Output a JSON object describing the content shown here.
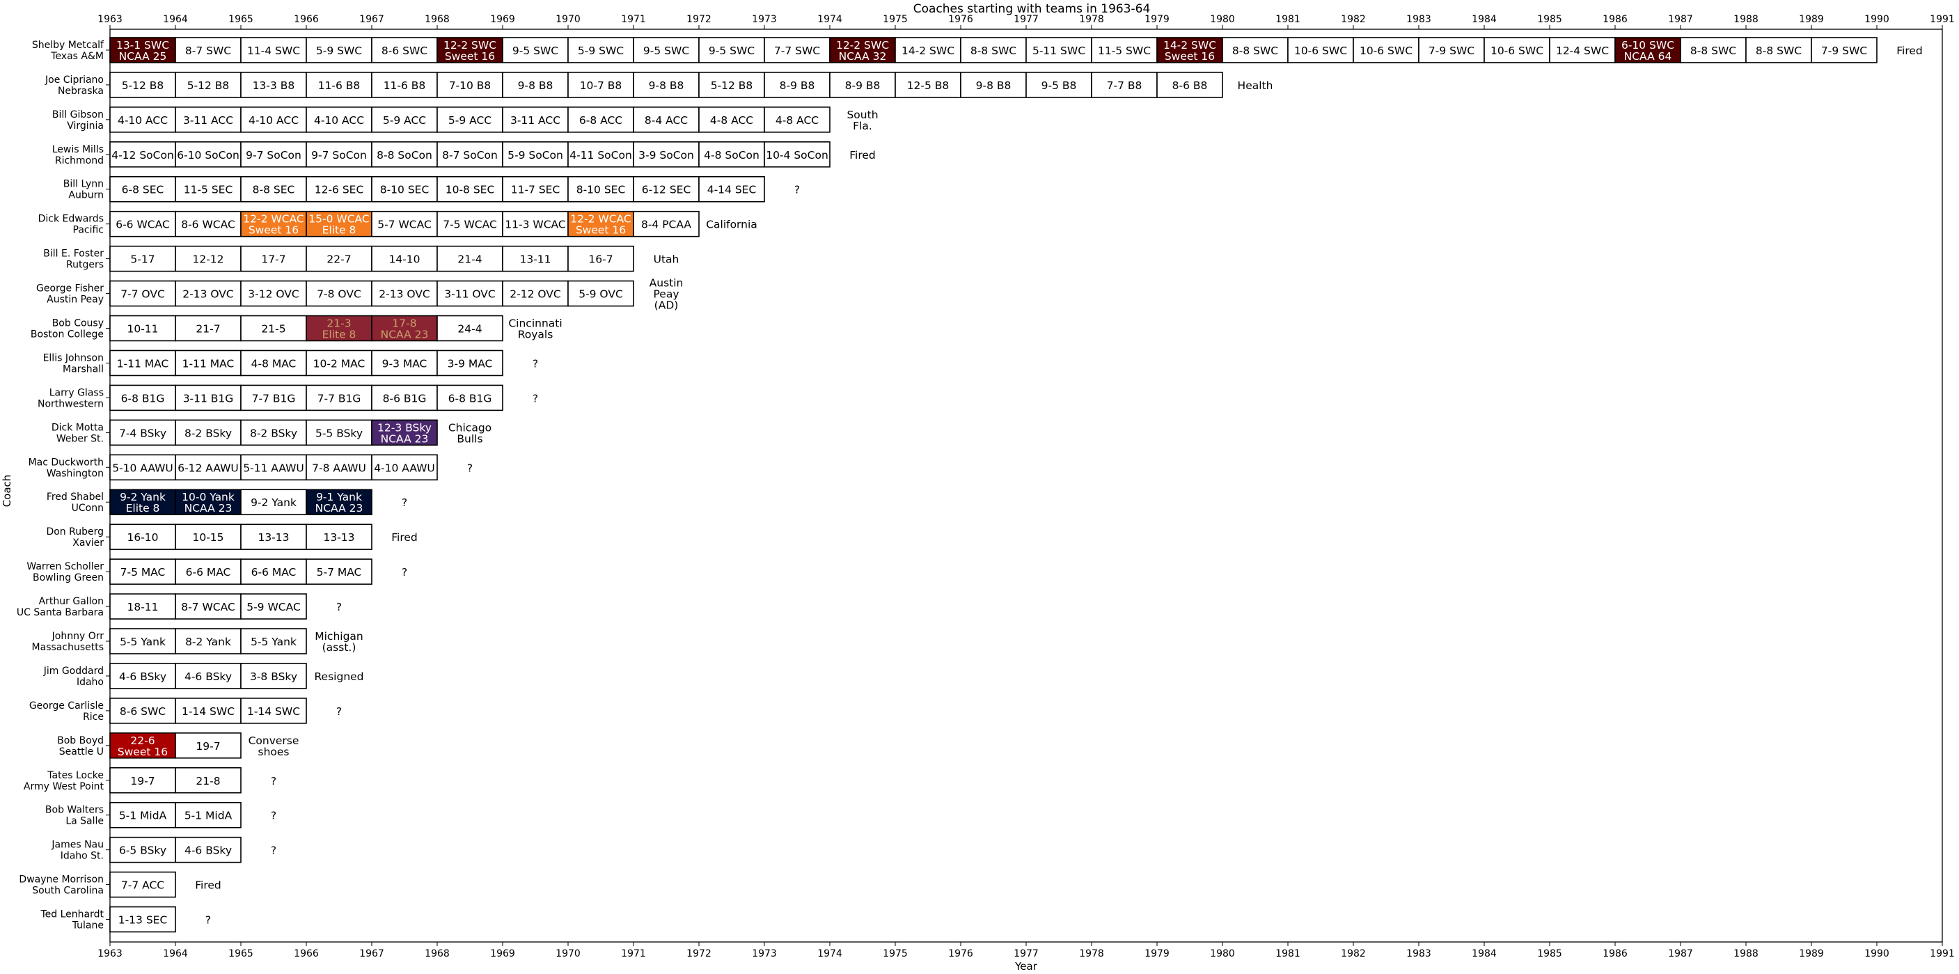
{
  "chart_data": {
    "type": "timeline",
    "title": "Coaches starting with teams in 1963-64",
    "xlabel": "Year",
    "ylabel": "Coach",
    "xlim": [
      1963,
      1991
    ],
    "x_ticks": [
      1963,
      1964,
      1965,
      1966,
      1967,
      1968,
      1969,
      1970,
      1971,
      1972,
      1973,
      1974,
      1975,
      1976,
      1977,
      1978,
      1979,
      1980,
      1981,
      1982,
      1983,
      1984,
      1985,
      1986,
      1987,
      1988,
      1989,
      1990,
      1991
    ],
    "colors": {
      "default_fill": "#ffffff",
      "edge": "#000000",
      "texas_am": "#500000",
      "dick_edwards": "#f47b20",
      "bob_cousy": "#8a2432",
      "dick_motta": "#4b286d",
      "fred_shabel": "#000e2f",
      "bob_boyd": "#aa0000"
    },
    "coaches": [
      {
        "name": "Shelby Metcalf",
        "team": "Texas A&M",
        "start": 1963,
        "color": "#500000",
        "label_color": "#ffffff",
        "outcome": "Fired",
        "seasons": [
          {
            "label": "13-1 SWC\nNCAA 25",
            "hl": true
          },
          {
            "label": "8-7 SWC"
          },
          {
            "label": "11-4 SWC"
          },
          {
            "label": "5-9 SWC"
          },
          {
            "label": "8-6 SWC"
          },
          {
            "label": "12-2 SWC\nSweet 16",
            "hl": true
          },
          {
            "label": "9-5 SWC"
          },
          {
            "label": "5-9 SWC"
          },
          {
            "label": "9-5 SWC"
          },
          {
            "label": "9-5 SWC"
          },
          {
            "label": "7-7 SWC"
          },
          {
            "label": "12-2 SWC\nNCAA 32",
            "hl": true
          },
          {
            "label": "14-2 SWC"
          },
          {
            "label": "8-8 SWC"
          },
          {
            "label": "5-11 SWC"
          },
          {
            "label": "11-5 SWC"
          },
          {
            "label": "14-2 SWC\nSweet 16",
            "hl": true
          },
          {
            "label": "8-8 SWC"
          },
          {
            "label": "10-6 SWC"
          },
          {
            "label": "10-6 SWC"
          },
          {
            "label": "7-9 SWC"
          },
          {
            "label": "10-6 SWC"
          },
          {
            "label": "12-4 SWC"
          },
          {
            "label": "6-10 SWC\nNCAA 64",
            "hl": true
          },
          {
            "label": "8-8 SWC"
          },
          {
            "label": "8-8 SWC"
          },
          {
            "label": "7-9 SWC"
          }
        ]
      },
      {
        "name": "Joe Cipriano",
        "team": "Nebraska",
        "start": 1963,
        "outcome": "Health",
        "seasons": [
          {
            "label": "5-12 B8"
          },
          {
            "label": "5-12 B8"
          },
          {
            "label": "13-3 B8"
          },
          {
            "label": "11-6 B8"
          },
          {
            "label": "11-6 B8"
          },
          {
            "label": "7-10 B8"
          },
          {
            "label": "9-8 B8"
          },
          {
            "label": "10-7 B8"
          },
          {
            "label": "9-8 B8"
          },
          {
            "label": "5-12 B8"
          },
          {
            "label": "8-9 B8"
          },
          {
            "label": "8-9 B8"
          },
          {
            "label": "12-5 B8"
          },
          {
            "label": "9-8 B8"
          },
          {
            "label": "9-5 B8"
          },
          {
            "label": "7-7 B8"
          },
          {
            "label": "8-6 B8"
          }
        ]
      },
      {
        "name": "Bill Gibson",
        "team": "Virginia",
        "start": 1963,
        "outcome": "South\nFla.",
        "seasons": [
          {
            "label": "4-10 ACC"
          },
          {
            "label": "3-11 ACC"
          },
          {
            "label": "4-10 ACC"
          },
          {
            "label": "4-10 ACC"
          },
          {
            "label": "5-9 ACC"
          },
          {
            "label": "5-9 ACC"
          },
          {
            "label": "3-11 ACC"
          },
          {
            "label": "6-8 ACC"
          },
          {
            "label": "8-4 ACC"
          },
          {
            "label": "4-8 ACC"
          },
          {
            "label": "4-8 ACC"
          }
        ]
      },
      {
        "name": "Lewis Mills",
        "team": "Richmond",
        "start": 1963,
        "outcome": "Fired",
        "seasons": [
          {
            "label": "4-12 SoCon"
          },
          {
            "label": "6-10 SoCon"
          },
          {
            "label": "9-7 SoCon"
          },
          {
            "label": "9-7 SoCon"
          },
          {
            "label": "8-8 SoCon"
          },
          {
            "label": "8-7 SoCon"
          },
          {
            "label": "5-9 SoCon"
          },
          {
            "label": "4-11 SoCon"
          },
          {
            "label": "3-9 SoCon"
          },
          {
            "label": "4-8 SoCon"
          },
          {
            "label": "10-4 SoCon"
          }
        ]
      },
      {
        "name": "Bill Lynn",
        "team": "Auburn",
        "start": 1963,
        "outcome": "?",
        "seasons": [
          {
            "label": "6-8 SEC"
          },
          {
            "label": "11-5 SEC"
          },
          {
            "label": "8-8 SEC"
          },
          {
            "label": "12-6 SEC"
          },
          {
            "label": "8-10 SEC"
          },
          {
            "label": "10-8 SEC"
          },
          {
            "label": "11-7 SEC"
          },
          {
            "label": "8-10 SEC"
          },
          {
            "label": "6-12 SEC"
          },
          {
            "label": "4-14 SEC"
          }
        ]
      },
      {
        "name": "Dick Edwards",
        "team": "Pacific",
        "start": 1963,
        "color": "#f47b20",
        "label_color": "#ffffff",
        "outcome": "California",
        "seasons": [
          {
            "label": "6-6 WCAC"
          },
          {
            "label": "8-6 WCAC"
          },
          {
            "label": "12-2 WCAC\nSweet 16",
            "hl": true
          },
          {
            "label": "15-0 WCAC\nElite 8",
            "hl": true
          },
          {
            "label": "5-7 WCAC"
          },
          {
            "label": "7-5 WCAC"
          },
          {
            "label": "11-3 WCAC"
          },
          {
            "label": "12-2 WCAC\nSweet 16",
            "hl": true
          },
          {
            "label": "8-4 PCAA"
          }
        ]
      },
      {
        "name": "Bill E. Foster",
        "team": "Rutgers",
        "start": 1963,
        "outcome": "Utah",
        "seasons": [
          {
            "label": "5-17"
          },
          {
            "label": "12-12"
          },
          {
            "label": "17-7"
          },
          {
            "label": "22-7"
          },
          {
            "label": "14-10"
          },
          {
            "label": "21-4"
          },
          {
            "label": "13-11"
          },
          {
            "label": "16-7"
          }
        ]
      },
      {
        "name": "George Fisher",
        "team": "Austin Peay",
        "start": 1963,
        "outcome": "Austin\nPeay\n(AD)",
        "seasons": [
          {
            "label": "7-7 OVC"
          },
          {
            "label": "2-13 OVC"
          },
          {
            "label": "3-12 OVC"
          },
          {
            "label": "7-8 OVC"
          },
          {
            "label": "2-13 OVC"
          },
          {
            "label": "3-11 OVC"
          },
          {
            "label": "2-12 OVC"
          },
          {
            "label": "5-9 OVC"
          }
        ]
      },
      {
        "name": "Bob Cousy",
        "team": "Boston College",
        "start": 1963,
        "color": "#8a2432",
        "label_color": "#c8a06a",
        "outcome": "Cincinnati\nRoyals",
        "seasons": [
          {
            "label": "10-11"
          },
          {
            "label": "21-7"
          },
          {
            "label": "21-5"
          },
          {
            "label": "21-3\nElite 8",
            "hl": true
          },
          {
            "label": "17-8\nNCAA 23",
            "hl": true
          },
          {
            "label": "24-4"
          }
        ]
      },
      {
        "name": "Ellis Johnson",
        "team": "Marshall",
        "start": 1963,
        "outcome": "?",
        "seasons": [
          {
            "label": "1-11 MAC"
          },
          {
            "label": "1-11 MAC"
          },
          {
            "label": "4-8 MAC"
          },
          {
            "label": "10-2 MAC"
          },
          {
            "label": "9-3 MAC"
          },
          {
            "label": "3-9 MAC"
          }
        ]
      },
      {
        "name": "Larry Glass",
        "team": "Northwestern",
        "start": 1963,
        "outcome": "?",
        "seasons": [
          {
            "label": "6-8 B1G"
          },
          {
            "label": "3-11 B1G"
          },
          {
            "label": "7-7 B1G"
          },
          {
            "label": "7-7 B1G"
          },
          {
            "label": "8-6 B1G"
          },
          {
            "label": "6-8 B1G"
          }
        ]
      },
      {
        "name": "Dick Motta",
        "team": "Weber St.",
        "start": 1963,
        "color": "#4b286d",
        "label_color": "#ffffff",
        "outcome": "Chicago\nBulls",
        "seasons": [
          {
            "label": "7-4 BSky"
          },
          {
            "label": "8-2 BSky"
          },
          {
            "label": "8-2 BSky"
          },
          {
            "label": "5-5 BSky"
          },
          {
            "label": "12-3 BSky\nNCAA 23",
            "hl": true
          }
        ]
      },
      {
        "name": "Mac Duckworth",
        "team": "Washington",
        "start": 1963,
        "outcome": "?",
        "seasons": [
          {
            "label": "5-10 AAWU"
          },
          {
            "label": "6-12 AAWU"
          },
          {
            "label": "5-11 AAWU"
          },
          {
            "label": "7-8 AAWU"
          },
          {
            "label": "4-10 AAWU"
          }
        ]
      },
      {
        "name": "Fred Shabel",
        "team": "UConn",
        "start": 1963,
        "color": "#000e2f",
        "label_color": "#ffffff",
        "outcome": "?",
        "seasons": [
          {
            "label": "9-2 Yank\nElite 8",
            "hl": true
          },
          {
            "label": "10-0 Yank\nNCAA 23",
            "hl": true
          },
          {
            "label": "9-2 Yank"
          },
          {
            "label": "9-1 Yank\nNCAA 23",
            "hl": true
          }
        ]
      },
      {
        "name": "Don Ruberg",
        "team": "Xavier",
        "start": 1963,
        "outcome": "Fired",
        "seasons": [
          {
            "label": "16-10"
          },
          {
            "label": "10-15"
          },
          {
            "label": "13-13"
          },
          {
            "label": "13-13"
          }
        ]
      },
      {
        "name": "Warren Scholler",
        "team": "Bowling Green",
        "start": 1963,
        "outcome": "?",
        "seasons": [
          {
            "label": "7-5 MAC"
          },
          {
            "label": "6-6 MAC"
          },
          {
            "label": "6-6 MAC"
          },
          {
            "label": "5-7 MAC"
          }
        ]
      },
      {
        "name": "Arthur Gallon",
        "team": "UC Santa Barbara",
        "start": 1963,
        "outcome": "?",
        "seasons": [
          {
            "label": "18-11"
          },
          {
            "label": "8-7 WCAC"
          },
          {
            "label": "5-9 WCAC"
          }
        ]
      },
      {
        "name": "Johnny Orr",
        "team": "Massachusetts",
        "start": 1963,
        "outcome": "Michigan\n(asst.)",
        "seasons": [
          {
            "label": "5-5 Yank"
          },
          {
            "label": "8-2 Yank"
          },
          {
            "label": "5-5 Yank"
          }
        ]
      },
      {
        "name": "Jim Goddard",
        "team": "Idaho",
        "start": 1963,
        "outcome": "Resigned",
        "seasons": [
          {
            "label": "4-6 BSky"
          },
          {
            "label": "4-6 BSky"
          },
          {
            "label": "3-8 BSky"
          }
        ]
      },
      {
        "name": "George Carlisle",
        "team": "Rice",
        "start": 1963,
        "outcome": "?",
        "seasons": [
          {
            "label": "8-6 SWC"
          },
          {
            "label": "1-14 SWC"
          },
          {
            "label": "1-14 SWC"
          }
        ]
      },
      {
        "name": "Bob Boyd",
        "team": "Seattle U",
        "start": 1963,
        "color": "#aa0000",
        "label_color": "#ffffff",
        "outcome": "Converse\nshoes",
        "seasons": [
          {
            "label": "22-6\nSweet 16",
            "hl": true
          },
          {
            "label": "19-7"
          }
        ]
      },
      {
        "name": "Tates Locke",
        "team": "Army West Point",
        "start": 1963,
        "outcome": "?",
        "seasons": [
          {
            "label": "19-7"
          },
          {
            "label": "21-8"
          }
        ]
      },
      {
        "name": "Bob Walters",
        "team": "La Salle",
        "start": 1963,
        "outcome": "?",
        "seasons": [
          {
            "label": "5-1 MidA"
          },
          {
            "label": "5-1 MidA"
          }
        ]
      },
      {
        "name": "James Nau",
        "team": "Idaho St.",
        "start": 1963,
        "outcome": "?",
        "seasons": [
          {
            "label": "6-5 BSky"
          },
          {
            "label": "4-6 BSky"
          }
        ]
      },
      {
        "name": "Dwayne Morrison",
        "team": "South Carolina",
        "start": 1963,
        "outcome": "Fired",
        "seasons": [
          {
            "label": "7-7 ACC"
          }
        ]
      },
      {
        "name": "Ted Lenhardt",
        "team": "Tulane",
        "start": 1963,
        "outcome": "?",
        "seasons": [
          {
            "label": "1-13 SEC"
          }
        ]
      }
    ]
  }
}
